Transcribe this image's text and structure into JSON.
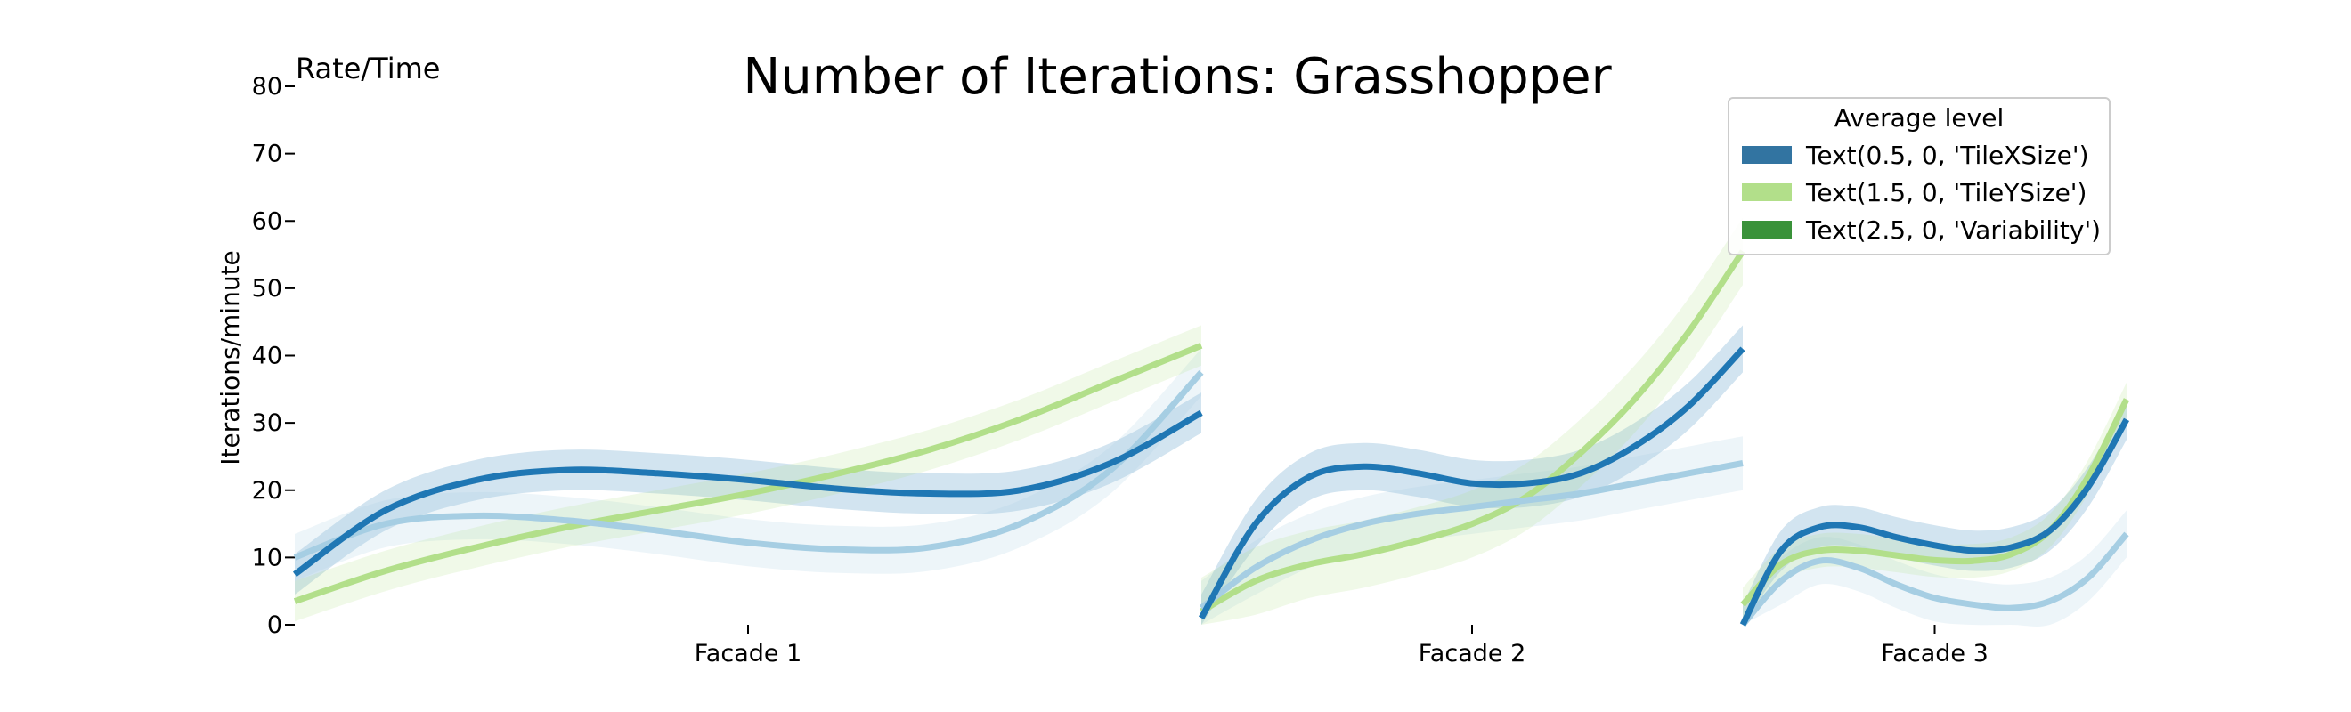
{
  "chart_data": {
    "type": "line",
    "title": "Number of Iterations: Grasshopper",
    "corner_label": "Rate/Time",
    "ylabel": "Iterations/minute",
    "ylim": [
      0,
      80
    ],
    "yticks": [
      0,
      10,
      20,
      30,
      40,
      50,
      60,
      70,
      80
    ],
    "legend": {
      "title": "Average level",
      "placement": "top-right",
      "entries": [
        {
          "label": "Text(0.5, 0, 'TileXSize')",
          "color": "#3274a1"
        },
        {
          "label": "Text(1.5, 0, 'TileYSize')",
          "color": "#b2df8a"
        },
        {
          "label": "Text(2.5, 0, 'Variability')",
          "color": "#3a923a"
        }
      ]
    },
    "colors": {
      "dark_blue": "#1f77b4",
      "light_blue": "#a6cee3",
      "light_green": "#b2df8a"
    },
    "panels": [
      {
        "name": "Facade 1",
        "series": [
          {
            "color": "dark_blue",
            "x": [
              0,
              0.1,
              0.2,
              0.3,
              0.4,
              0.5,
              0.6,
              0.7,
              0.8,
              0.9,
              1.0
            ],
            "y": [
              7.5,
              17,
              21.5,
              23,
              22.5,
              21.5,
              20.2,
              19.5,
              20,
              24,
              31.5
            ],
            "band": 3
          },
          {
            "color": "light_blue",
            "x": [
              0,
              0.1,
              0.2,
              0.3,
              0.4,
              0.5,
              0.6,
              0.7,
              0.8,
              0.9,
              1.0
            ],
            "y": [
              10,
              15,
              16.2,
              15.5,
              14,
              12.2,
              11.2,
              11.5,
              15,
              23,
              37.5
            ],
            "band": 3.5
          },
          {
            "color": "light_green",
            "x": [
              0,
              0.1,
              0.2,
              0.3,
              0.4,
              0.5,
              0.6,
              0.7,
              0.8,
              0.9,
              1.0
            ],
            "y": [
              3.5,
              8,
              11.5,
              14.5,
              17,
              19.5,
              22.5,
              26,
              30.5,
              36,
              41.5
            ],
            "band": 3
          }
        ]
      },
      {
        "name": "Facade 2",
        "series": [
          {
            "color": "dark_blue",
            "x": [
              0,
              0.1,
              0.2,
              0.3,
              0.4,
              0.5,
              0.6,
              0.7,
              0.8,
              0.9,
              1.0
            ],
            "y": [
              1,
              15,
              22,
              23.5,
              22.5,
              21,
              21,
              22.5,
              26.5,
              32.5,
              41
            ],
            "band": 3.5
          },
          {
            "color": "light_blue",
            "x": [
              0,
              0.1,
              0.2,
              0.3,
              0.4,
              0.5,
              0.6,
              0.7,
              0.8,
              0.9,
              1.0
            ],
            "y": [
              2.5,
              8.5,
              12.5,
              15,
              16.5,
              17.5,
              18.5,
              19.5,
              21,
              22.5,
              24
            ],
            "band": 4
          },
          {
            "color": "light_green",
            "x": [
              0,
              0.1,
              0.2,
              0.3,
              0.4,
              0.5,
              0.6,
              0.7,
              0.8,
              0.9,
              1.0
            ],
            "y": [
              2,
              6.5,
              9,
              10.5,
              12.5,
              15,
              19,
              25.5,
              33.5,
              43.5,
              55.5
            ],
            "band": 5
          }
        ]
      },
      {
        "name": "Facade 3",
        "series": [
          {
            "color": "dark_blue",
            "x": [
              0,
              0.1,
              0.2,
              0.3,
              0.4,
              0.5,
              0.6,
              0.7,
              0.8,
              0.9,
              1.0
            ],
            "y": [
              0,
              11,
              14.5,
              14.5,
              13,
              11.8,
              11,
              11.5,
              14,
              20.5,
              30.5
            ],
            "band": 3
          },
          {
            "color": "light_blue",
            "x": [
              0,
              0.1,
              0.2,
              0.3,
              0.4,
              0.5,
              0.6,
              0.7,
              0.8,
              0.9,
              1.0
            ],
            "y": [
              0,
              6.5,
              9.5,
              8.5,
              6,
              4,
              3,
              2.5,
              3.5,
              7,
              13.5
            ],
            "band": 3.5
          },
          {
            "color": "light_green",
            "x": [
              0,
              0.1,
              0.2,
              0.3,
              0.4,
              0.5,
              0.6,
              0.7,
              0.8,
              0.9,
              1.0
            ],
            "y": [
              3,
              9,
              11,
              11,
              10.3,
              9.6,
              9.5,
              10.5,
              14,
              22,
              33.5
            ],
            "band": 2.5
          }
        ]
      }
    ]
  }
}
